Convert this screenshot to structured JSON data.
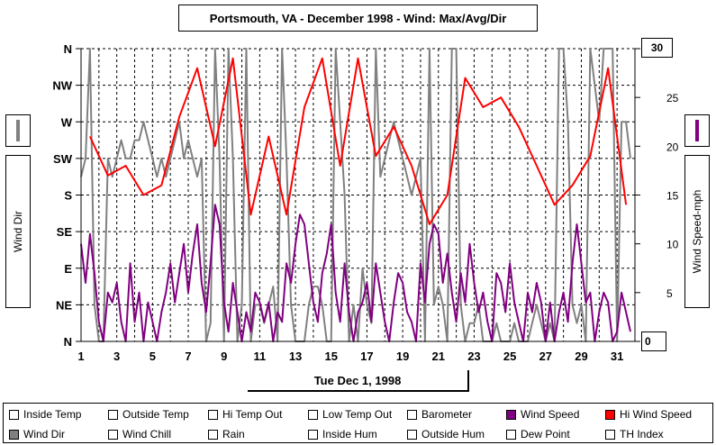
{
  "chart_data": {
    "type": "line",
    "title": "Portsmouth, VA - December 1998 - Wind: Max/Avg/Dir",
    "xlabel": "Tue Dec 1, 1998",
    "ylabel_left": "Wind Dir",
    "ylabel_right": "Wind Speed-mph",
    "xlim": [
      1,
      32
    ],
    "x_ticks": [
      1,
      3,
      5,
      7,
      9,
      11,
      13,
      15,
      17,
      19,
      21,
      23,
      25,
      27,
      29,
      31
    ],
    "y_left_ticks": [
      "N",
      "NE",
      "E",
      "SE",
      "S",
      "SW",
      "W",
      "NW",
      "N"
    ],
    "y_right_ticks": [
      0,
      5,
      10,
      15,
      20,
      25,
      30
    ],
    "ylim_right": [
      0,
      30
    ],
    "grid": true,
    "series": [
      {
        "name": "Hi Wind Speed",
        "color": "#ff0000",
        "x": [
          1.5,
          2.5,
          3.5,
          4.5,
          5.5,
          6.5,
          7.5,
          8.5,
          9.5,
          10.5,
          11.5,
          12.5,
          13.5,
          14.5,
          15.5,
          16.5,
          17.5,
          18.5,
          19.5,
          20.5,
          21.5,
          22.5,
          23.5,
          24.5,
          25.5,
          26.5,
          27.5,
          28.5,
          29.5,
          30.5,
          31.5
        ],
        "values": [
          21,
          17,
          18,
          15,
          16,
          23,
          28,
          20,
          29,
          13,
          21,
          13,
          24,
          29,
          18,
          29,
          19,
          22,
          18,
          12,
          15,
          27,
          24,
          25,
          22,
          18,
          14,
          16,
          19,
          28,
          14
        ]
      },
      {
        "name": "Wind Speed",
        "color": "#800080",
        "x": [
          1.0,
          1.25,
          1.5,
          1.75,
          2.0,
          2.25,
          2.5,
          2.75,
          3.0,
          3.25,
          3.5,
          3.75,
          4.0,
          4.25,
          4.5,
          4.75,
          5.0,
          5.25,
          5.5,
          5.75,
          6.0,
          6.25,
          6.5,
          6.75,
          7.0,
          7.25,
          7.5,
          7.75,
          8.0,
          8.25,
          8.5,
          8.75,
          9.0,
          9.25,
          9.5,
          9.75,
          10.0,
          10.25,
          10.5,
          10.75,
          11.0,
          11.25,
          11.5,
          11.75,
          12.0,
          12.25,
          12.5,
          12.75,
          13.0,
          13.25,
          13.5,
          13.75,
          14.0,
          14.25,
          14.5,
          14.75,
          15.0,
          15.25,
          15.5,
          15.75,
          16.0,
          16.25,
          16.5,
          16.75,
          17.0,
          17.25,
          17.5,
          17.75,
          18.0,
          18.25,
          18.5,
          18.75,
          19.0,
          19.25,
          19.5,
          19.75,
          20.0,
          20.25,
          20.5,
          20.75,
          21.0,
          21.25,
          21.5,
          21.75,
          22.0,
          22.25,
          22.5,
          22.75,
          23.0,
          23.25,
          23.5,
          23.75,
          24.0,
          24.25,
          24.5,
          24.75,
          25.0,
          25.25,
          25.5,
          25.75,
          26.0,
          26.25,
          26.5,
          26.75,
          27.0,
          27.25,
          27.5,
          27.75,
          28.0,
          28.25,
          28.5,
          28.75,
          29.0,
          29.25,
          29.5,
          29.75,
          30.0,
          30.25,
          30.5,
          30.75,
          31.0,
          31.25,
          31.5,
          31.75
        ],
        "values": [
          10,
          6,
          11,
          7,
          2,
          0,
          5,
          4,
          6,
          2,
          0,
          8,
          2,
          5,
          0,
          4,
          2,
          0,
          3,
          5,
          8,
          4,
          7,
          10,
          5,
          9,
          12,
          6,
          3,
          8,
          14,
          12,
          4,
          1,
          6,
          3,
          0,
          3,
          1,
          5,
          4,
          2,
          4,
          0,
          3,
          2,
          8,
          6,
          10,
          13,
          12,
          8,
          4,
          2,
          7,
          9,
          12,
          5,
          2,
          8,
          3,
          0,
          3,
          4,
          6,
          2,
          8,
          5,
          2,
          0,
          4,
          7,
          6,
          3,
          2,
          0,
          8,
          4,
          10,
          12,
          11,
          6,
          9,
          5,
          2,
          7,
          4,
          10,
          6,
          3,
          5,
          2,
          0,
          7,
          6,
          3,
          8,
          4,
          2,
          0,
          5,
          3,
          6,
          4,
          0,
          4,
          0,
          3,
          5,
          2,
          8,
          12,
          8,
          4,
          5,
          0,
          3,
          5,
          4,
          0,
          1,
          5,
          3,
          1
        ],
        "unit": "mph"
      },
      {
        "name": "Wind Dir",
        "color": "#808080",
        "axis": "left",
        "y_scale": "compass N=0..N=8",
        "x": [
          1.0,
          1.25,
          1.5,
          1.75,
          2.0,
          2.25,
          2.5,
          2.75,
          3.0,
          3.25,
          3.5,
          3.75,
          4.0,
          4.25,
          4.5,
          4.75,
          5.0,
          5.25,
          5.5,
          5.75,
          6.0,
          6.25,
          6.5,
          6.75,
          7.0,
          7.25,
          7.5,
          7.75,
          8.0,
          8.25,
          8.5,
          8.75,
          9.0,
          9.25,
          9.5,
          9.75,
          10.0,
          10.25,
          10.5,
          10.75,
          11.0,
          11.25,
          11.5,
          11.75,
          12.0,
          12.25,
          12.5,
          12.75,
          13.0,
          13.25,
          13.5,
          13.75,
          14.0,
          14.25,
          14.5,
          14.75,
          15.0,
          15.25,
          15.5,
          15.75,
          16.0,
          16.25,
          16.5,
          16.75,
          17.0,
          17.25,
          17.5,
          17.75,
          18.0,
          18.25,
          18.5,
          18.75,
          19.0,
          19.25,
          19.5,
          19.75,
          20.0,
          20.25,
          20.5,
          20.75,
          21.0,
          21.25,
          21.5,
          21.75,
          22.0,
          22.25,
          22.5,
          22.75,
          23.0,
          23.25,
          23.5,
          23.75,
          24.0,
          24.25,
          24.5,
          24.75,
          25.0,
          25.25,
          25.5,
          25.75,
          26.0,
          26.25,
          26.5,
          26.75,
          27.0,
          27.25,
          27.5,
          27.75,
          28.0,
          28.25,
          28.5,
          28.75,
          29.0,
          29.25,
          29.5,
          29.75,
          30.0,
          30.25,
          30.5,
          30.75,
          31.0,
          31.25,
          31.5,
          31.75
        ],
        "values": [
          4.5,
          5.0,
          8.0,
          1.0,
          0.0,
          0.0,
          5.0,
          4.5,
          5.0,
          5.5,
          5.0,
          5.0,
          5.5,
          5.5,
          6.0,
          5.5,
          5.0,
          4.5,
          5.0,
          4.5,
          5.0,
          5.5,
          6.0,
          5.0,
          5.5,
          5.0,
          4.5,
          5.0,
          0.0,
          0.5,
          8.0,
          5.0,
          0.0,
          8.0,
          5.0,
          0.0,
          1.0,
          8.0,
          0.0,
          1.0,
          1.0,
          0.5,
          1.0,
          1.5,
          0.0,
          8.0,
          5.0,
          1.0,
          0.0,
          0.0,
          0.0,
          1.0,
          1.5,
          1.5,
          1.0,
          0.0,
          0.0,
          8.0,
          6.0,
          4.0,
          0.0,
          1.0,
          0.0,
          2.0,
          1.0,
          0.5,
          8.0,
          4.5,
          5.0,
          5.5,
          6.0,
          5.5,
          5.0,
          4.5,
          4.0,
          4.5,
          5.0,
          0.0,
          8.0,
          1.0,
          1.5,
          1.0,
          0.0,
          8.0,
          8.0,
          1.0,
          0.0,
          0.5,
          0.5,
          1.0,
          0.0,
          0.0,
          0.0,
          0.5,
          0.0,
          0.0,
          0.0,
          0.5,
          0.0,
          0.0,
          0.0,
          0.5,
          1.0,
          0.5,
          0.0,
          0.5,
          0.0,
          8.0,
          8.0,
          6.0,
          1.0,
          0.5,
          1.0,
          0.0,
          8.0,
          7.0,
          6.0,
          8.0,
          8.0,
          8.0,
          0.0,
          6.0,
          6.0,
          5.0
        ]
      }
    ]
  },
  "legend": {
    "items": [
      {
        "label": "Inside Temp",
        "checked": false,
        "color": ""
      },
      {
        "label": "Outside Temp",
        "checked": false,
        "color": ""
      },
      {
        "label": "Hi Temp Out",
        "checked": false,
        "color": ""
      },
      {
        "label": "Low Temp Out",
        "checked": false,
        "color": ""
      },
      {
        "label": "Barometer",
        "checked": false,
        "color": ""
      },
      {
        "label": "Wind Speed",
        "checked": true,
        "color": "#800080"
      },
      {
        "label": "Hi Wind Speed",
        "checked": true,
        "color": "#ff0000"
      },
      {
        "label": "Wind Dir",
        "checked": true,
        "color": "#808080"
      },
      {
        "label": "Wind Chill",
        "checked": false,
        "color": ""
      },
      {
        "label": "Rain",
        "checked": false,
        "color": ""
      },
      {
        "label": "Inside Hum",
        "checked": false,
        "color": ""
      },
      {
        "label": "Outside Hum",
        "checked": false,
        "color": ""
      },
      {
        "label": "Dew Point",
        "checked": false,
        "color": ""
      },
      {
        "label": "TH Index",
        "checked": false,
        "color": ""
      }
    ]
  }
}
